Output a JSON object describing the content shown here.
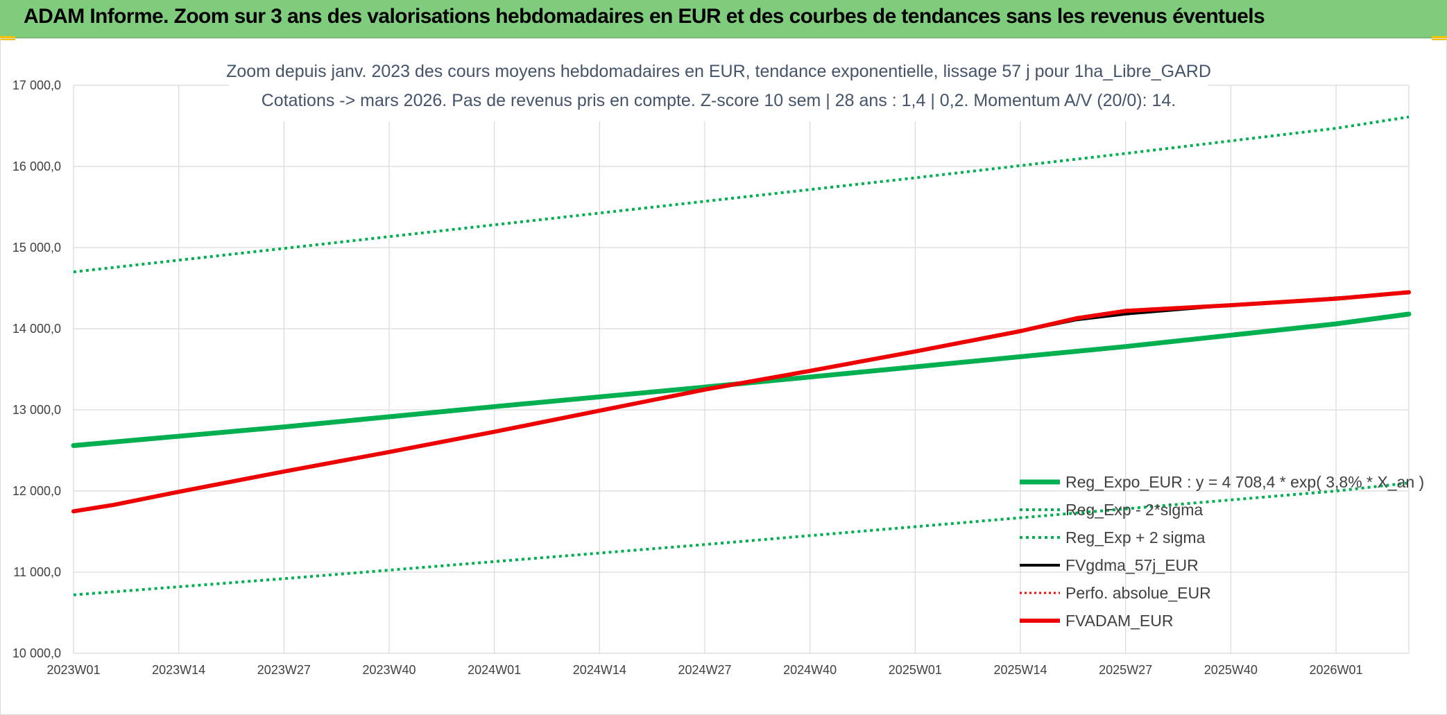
{
  "header": {
    "banner_title": "ADAM Informe. Zoom sur 3 ans des valorisations hebdomadaires en EUR et des courbes de tendances sans les revenus éventuels"
  },
  "chart_data": {
    "type": "line",
    "title_line1": "Zoom depuis janv. 2023 des cours moyens hebdomadaires en EUR, tendance exponentielle, lissage 57 j pour 1ha_Libre_GARD",
    "title_line2": "Cotations -> mars 2026. Pas de revenus pris en compte. Z-score 10 sem | 28 ans : 1,4 | 0,2. Momentum A/V (20/0): 14.",
    "x_tick_labels": [
      "2023W01",
      "2023W14",
      "2023W27",
      "2023W40",
      "2024W01",
      "2024W14",
      "2024W27",
      "2024W40",
      "2025W01",
      "2025W14",
      "2025W27",
      "2025W40",
      "2026W01"
    ],
    "x_range_weeks": [
      0,
      165
    ],
    "y_tick_labels": [
      "17 000,0",
      "16 000,0",
      "15 000,0",
      "14 000,0",
      "13 000,0",
      "12 000,0",
      "11 000,0",
      "10 000,0"
    ],
    "ylim": [
      10000,
      17000
    ],
    "grid": true,
    "legend_position": "bottom-right",
    "series": [
      {
        "name": "Reg_Expo_EUR : y = 4 708,4 * exp( 3,8% * X_an )",
        "color": "#00b050",
        "style": "solid",
        "width": 7,
        "points": [
          [
            0,
            12560
          ],
          [
            26,
            12790
          ],
          [
            52,
            13040
          ],
          [
            78,
            13280
          ],
          [
            104,
            13530
          ],
          [
            130,
            13780
          ],
          [
            156,
            14060
          ],
          [
            165,
            14180
          ]
        ]
      },
      {
        "name": "Reg_Exp - 2*sigma",
        "color": "#00b050",
        "style": "dotted",
        "width": 4,
        "points": [
          [
            0,
            10720
          ],
          [
            26,
            10920
          ],
          [
            52,
            11130
          ],
          [
            78,
            11340
          ],
          [
            104,
            11560
          ],
          [
            130,
            11780
          ],
          [
            156,
            12000
          ],
          [
            165,
            12100
          ]
        ]
      },
      {
        "name": "Reg_Exp + 2 sigma",
        "color": "#00b050",
        "style": "dotted",
        "width": 4,
        "points": [
          [
            0,
            14700
          ],
          [
            26,
            14990
          ],
          [
            52,
            15280
          ],
          [
            78,
            15570
          ],
          [
            104,
            15860
          ],
          [
            130,
            16160
          ],
          [
            156,
            16470
          ],
          [
            165,
            16610
          ]
        ]
      },
      {
        "name": "FVgdma_57j_EUR",
        "color": "#000000",
        "style": "solid",
        "width": 4,
        "points": [
          [
            0,
            11750
          ],
          [
            5,
            11830
          ],
          [
            13,
            11990
          ],
          [
            26,
            12240
          ],
          [
            39,
            12480
          ],
          [
            52,
            12730
          ],
          [
            65,
            12990
          ],
          [
            78,
            13250
          ],
          [
            91,
            13480
          ],
          [
            104,
            13720
          ],
          [
            117,
            13970
          ],
          [
            124,
            14110
          ],
          [
            130,
            14180
          ],
          [
            143,
            14290
          ],
          [
            156,
            14380
          ],
          [
            165,
            14440
          ]
        ]
      },
      {
        "name": "Perfo. absolue_EUR",
        "color": "#ff0000",
        "style": "dotted",
        "width": 3,
        "points": [
          [
            0,
            11750
          ],
          [
            5,
            11830
          ],
          [
            13,
            11990
          ],
          [
            26,
            12240
          ],
          [
            39,
            12480
          ],
          [
            52,
            12730
          ],
          [
            65,
            12990
          ],
          [
            78,
            13250
          ],
          [
            91,
            13480
          ],
          [
            104,
            13720
          ],
          [
            117,
            13970
          ],
          [
            124,
            14120
          ],
          [
            130,
            14210
          ],
          [
            143,
            14290
          ],
          [
            156,
            14370
          ],
          [
            165,
            14440
          ]
        ]
      },
      {
        "name": "FVADAM_EUR",
        "color": "#ee0000",
        "style": "solid",
        "width": 6,
        "points": [
          [
            0,
            11750
          ],
          [
            5,
            11830
          ],
          [
            13,
            11990
          ],
          [
            26,
            12240
          ],
          [
            39,
            12480
          ],
          [
            52,
            12730
          ],
          [
            65,
            12990
          ],
          [
            78,
            13250
          ],
          [
            91,
            13480
          ],
          [
            104,
            13720
          ],
          [
            117,
            13970
          ],
          [
            124,
            14130
          ],
          [
            130,
            14220
          ],
          [
            143,
            14290
          ],
          [
            156,
            14370
          ],
          [
            165,
            14450
          ]
        ]
      }
    ]
  }
}
